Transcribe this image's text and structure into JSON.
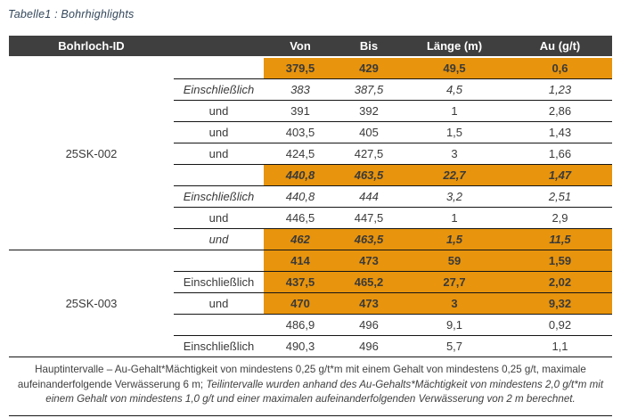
{
  "title": "Tabelle1 : Bohrhighlights",
  "colors": {
    "accent_orange": "#e8940c",
    "header_bg": "#3f3f3f",
    "header_text": "#ffffff",
    "title_text": "#33475b",
    "body_text": "#3a3a3a",
    "line": "#151515"
  },
  "table": {
    "columns": [
      "Bohrloch-ID",
      "",
      "Von",
      "Bis",
      "Länge (m)",
      "Au (g/t)"
    ],
    "groups": [
      {
        "id": "25SK-002",
        "rows": [
          {
            "q": "",
            "qs": "",
            "v": [
              "379,5",
              "429",
              "49,5",
              "0,6"
            ],
            "hl": true,
            "vs": "bold"
          },
          {
            "q": "Einschließlich",
            "qs": "italic",
            "v": [
              "383",
              "387,5",
              "4,5",
              "1,23"
            ],
            "hl": false,
            "vs": "italic"
          },
          {
            "q": "und",
            "qs": "",
            "v": [
              "391",
              "392",
              "1",
              "2,86"
            ],
            "hl": false,
            "vs": ""
          },
          {
            "q": "und",
            "qs": "",
            "v": [
              "403,5",
              "405",
              "1,5",
              "1,43"
            ],
            "hl": false,
            "vs": ""
          },
          {
            "q": "und",
            "qs": "",
            "v": [
              "424,5",
              "427,5",
              "3",
              "1,66"
            ],
            "hl": false,
            "vs": ""
          },
          {
            "q": "",
            "qs": "",
            "v": [
              "440,8",
              "463,5",
              "22,7",
              "1,47"
            ],
            "hl": true,
            "vs": "bold-italic"
          },
          {
            "q": "Einschließlich",
            "qs": "italic",
            "v": [
              "440,8",
              "444",
              "3,2",
              "2,51"
            ],
            "hl": false,
            "vs": "italic"
          },
          {
            "q": "und",
            "qs": "",
            "v": [
              "446,5",
              "447,5",
              "1",
              "2,9"
            ],
            "hl": false,
            "vs": ""
          },
          {
            "q": "und",
            "qs": "italic",
            "v": [
              "462",
              "463,5",
              "1,5",
              "11,5"
            ],
            "hl": true,
            "vs": "bold-italic"
          }
        ]
      },
      {
        "id": "25SK-003",
        "rows": [
          {
            "q": "",
            "qs": "",
            "v": [
              "414",
              "473",
              "59",
              "1,59"
            ],
            "hl": true,
            "vs": "bold"
          },
          {
            "q": "Einschließlich",
            "qs": "",
            "v": [
              "437,5",
              "465,2",
              "27,7",
              "2,02"
            ],
            "hl": true,
            "vs": "bold"
          },
          {
            "q": "und",
            "qs": "",
            "v": [
              "470",
              "473",
              "3",
              "9,32"
            ],
            "hl": true,
            "vs": "bold"
          },
          {
            "q": "",
            "qs": "",
            "v": [
              "486,9",
              "496",
              "9,1",
              "0,92"
            ],
            "hl": false,
            "vs": ""
          },
          {
            "q": "Einschließlich",
            "qs": "",
            "v": [
              "490,3",
              "496",
              "5,7",
              "1,1"
            ],
            "hl": false,
            "vs": ""
          }
        ]
      }
    ]
  },
  "footnote": {
    "regular": "Hauptintervalle – Au-Gehalt*Mächtigkeit von mindestens 0,25 g/t*m mit einem Gehalt von mindestens 0,25 g/t, maximale aufeinanderfolgende Verwässerung 6 m; ",
    "italic": "Teilintervalle wurden anhand des Au-Gehalts*Mächtigkeit von mindestens 2,0 g/t*m mit einem Gehalt von mindestens 1,0 g/t und einer maximalen aufeinanderfolgenden Verwässerung von 2 m berechnet."
  }
}
